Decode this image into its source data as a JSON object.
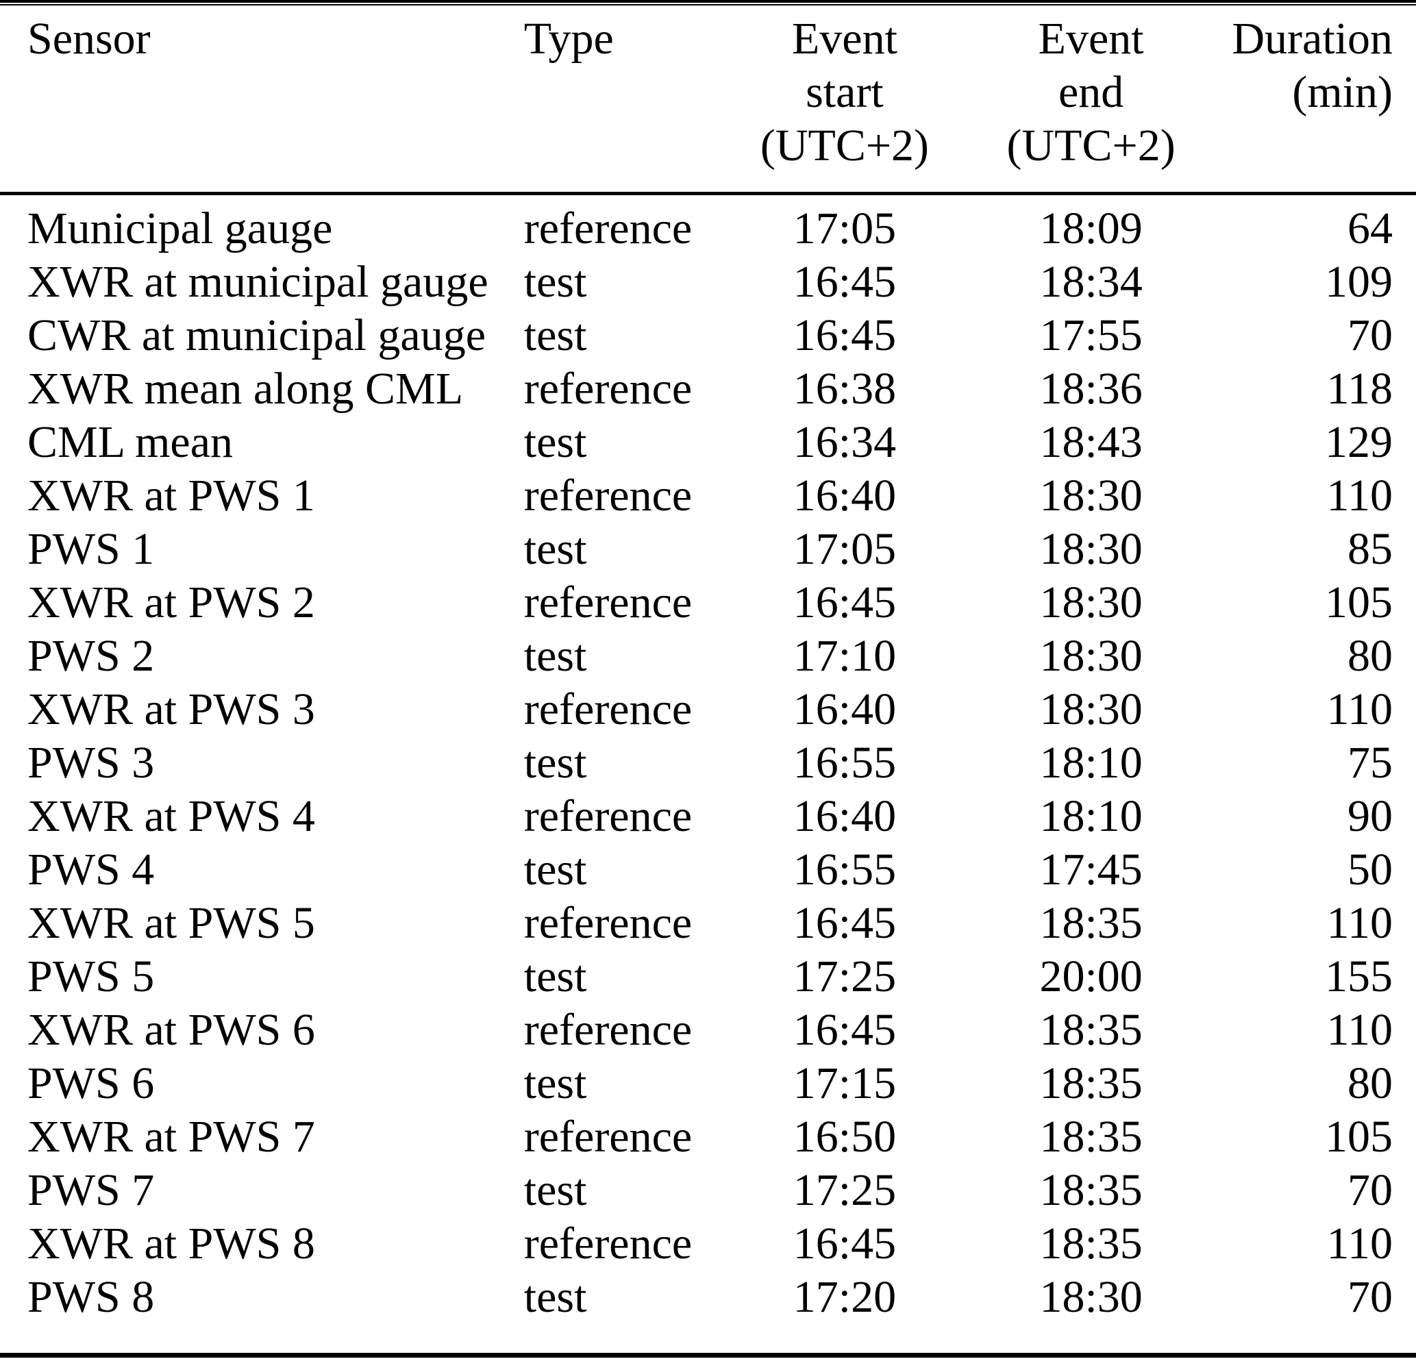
{
  "colors": {
    "text": "#000000",
    "background": "#ffffff",
    "rules": "#000000"
  },
  "table": {
    "headers": {
      "sensor": "Sensor",
      "type": "Type",
      "event_start": "Event\nstart\n(UTC+2)",
      "event_end": "Event\nend\n(UTC+2)",
      "duration": "Duration\n(min)"
    },
    "rows": [
      {
        "sensor": "Municipal gauge",
        "type": "reference",
        "event_start": "17:05",
        "event_end": "18:09",
        "duration": "64"
      },
      {
        "sensor": "XWR at municipal gauge",
        "type": "test",
        "event_start": "16:45",
        "event_end": "18:34",
        "duration": "109"
      },
      {
        "sensor": "CWR at municipal gauge",
        "type": "test",
        "event_start": "16:45",
        "event_end": "17:55",
        "duration": "70"
      },
      {
        "sensor": "XWR mean along CML",
        "type": "reference",
        "event_start": "16:38",
        "event_end": "18:36",
        "duration": "118"
      },
      {
        "sensor": "CML mean",
        "type": "test",
        "event_start": "16:34",
        "event_end": "18:43",
        "duration": "129"
      },
      {
        "sensor": "XWR at PWS 1",
        "type": "reference",
        "event_start": "16:40",
        "event_end": "18:30",
        "duration": "110"
      },
      {
        "sensor": "PWS 1",
        "type": "test",
        "event_start": "17:05",
        "event_end": "18:30",
        "duration": "85"
      },
      {
        "sensor": "XWR at PWS 2",
        "type": "reference",
        "event_start": "16:45",
        "event_end": "18:30",
        "duration": "105"
      },
      {
        "sensor": "PWS 2",
        "type": "test",
        "event_start": "17:10",
        "event_end": "18:30",
        "duration": "80"
      },
      {
        "sensor": "XWR at PWS 3",
        "type": "reference",
        "event_start": "16:40",
        "event_end": "18:30",
        "duration": "110"
      },
      {
        "sensor": "PWS 3",
        "type": "test",
        "event_start": "16:55",
        "event_end": "18:10",
        "duration": "75"
      },
      {
        "sensor": "XWR at PWS 4",
        "type": "reference",
        "event_start": "16:40",
        "event_end": "18:10",
        "duration": "90"
      },
      {
        "sensor": "PWS 4",
        "type": "test",
        "event_start": "16:55",
        "event_end": "17:45",
        "duration": "50"
      },
      {
        "sensor": "XWR at PWS 5",
        "type": "reference",
        "event_start": "16:45",
        "event_end": "18:35",
        "duration": "110"
      },
      {
        "sensor": "PWS 5",
        "type": "test",
        "event_start": "17:25",
        "event_end": "20:00",
        "duration": "155"
      },
      {
        "sensor": "XWR at PWS 6",
        "type": "reference",
        "event_start": "16:45",
        "event_end": "18:35",
        "duration": "110"
      },
      {
        "sensor": "PWS 6",
        "type": "test",
        "event_start": "17:15",
        "event_end": "18:35",
        "duration": "80"
      },
      {
        "sensor": "XWR at PWS 7",
        "type": "reference",
        "event_start": "16:50",
        "event_end": "18:35",
        "duration": "105"
      },
      {
        "sensor": "PWS 7",
        "type": "test",
        "event_start": "17:25",
        "event_end": "18:35",
        "duration": "70"
      },
      {
        "sensor": "XWR at PWS 8",
        "type": "reference",
        "event_start": "16:45",
        "event_end": "18:35",
        "duration": "110"
      },
      {
        "sensor": "PWS 8",
        "type": "test",
        "event_start": "17:20",
        "event_end": "18:30",
        "duration": "70"
      }
    ]
  }
}
